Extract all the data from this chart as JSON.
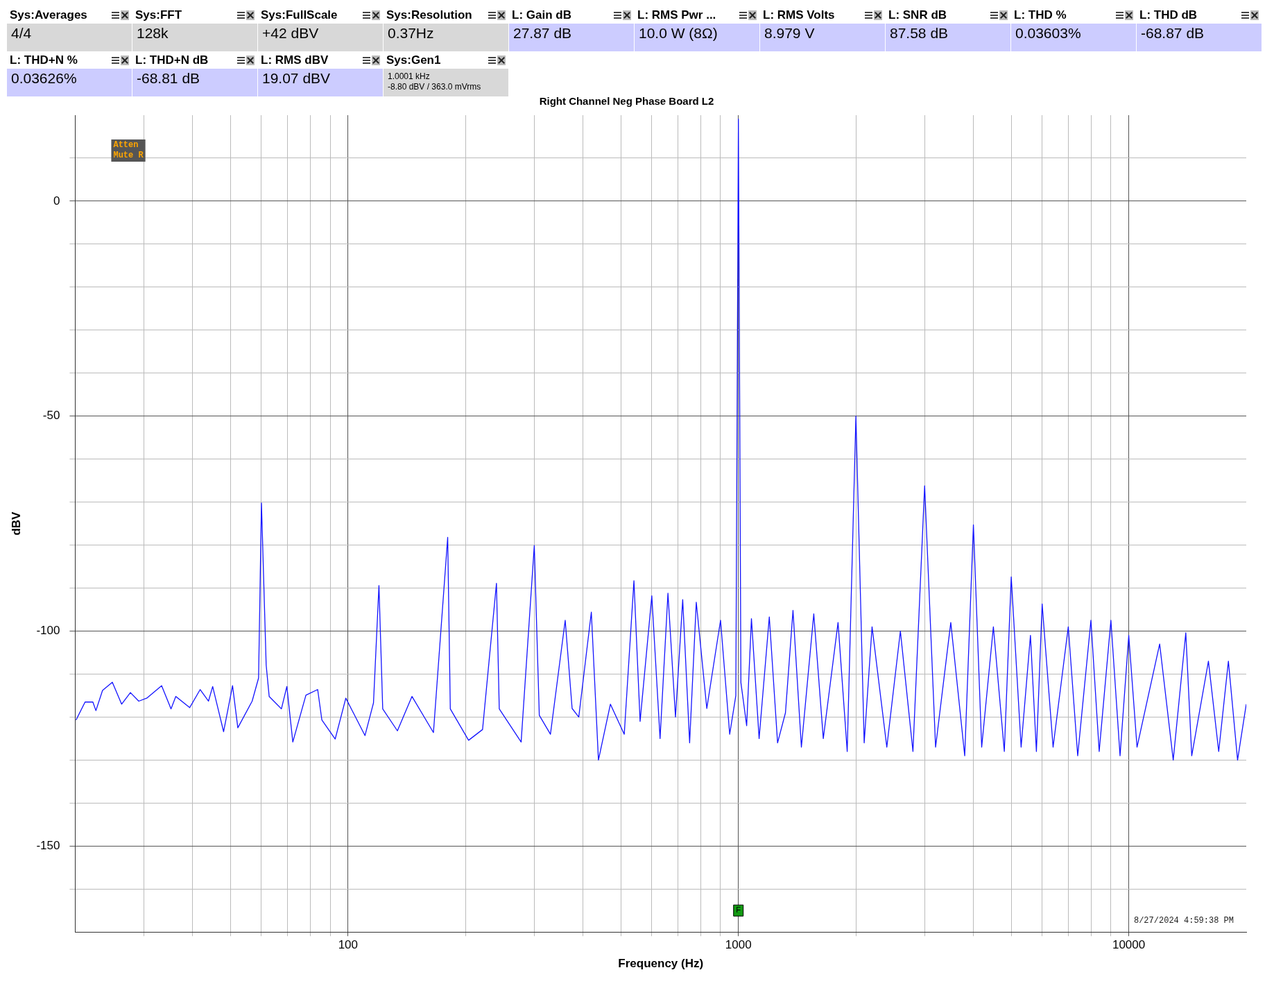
{
  "chart_data": {
    "type": "line",
    "title": "Right Channel Neg Phase Board L2",
    "xlabel": "Frequency (Hz)",
    "ylabel": "dBV",
    "annotations": [
      "Sys:Averages",
      "4/4",
      "Sys:FFT",
      "128k",
      "Sys:FullScale",
      "+42 dBV",
      "Sys:Resolution",
      "0.37Hz",
      "L: Gain dB",
      "27.87 dB",
      "L: RMS Pwr ...",
      "10.0 W (8Ω)",
      "L: RMS Volts",
      "8.979 V",
      "L: SNR dB",
      "87.58 dB",
      "L: THD %",
      "0.03603%",
      "L: THD dB",
      "-68.87 dB",
      "L: THD+N %",
      "0.03626%",
      "L: THD+N dB",
      "-68.81 dB",
      "L: RMS dBV",
      "19.07 dBV",
      "Sys:Gen1",
      "1.0001 kHz\n-8.80 dBV  / 363.0 mVrms",
      "Atten\nMute R",
      "8/27/2024 4:59:38 PM",
      {
        "text": "F",
        "x": 1000,
        "y": -165
      }
    ],
    "x": [
      20.1,
      21.2,
      22.2,
      22.6,
      23.5,
      24.9,
      26.3,
      27.7,
      29.1,
      30.5,
      33.3,
      35.2,
      36.2,
      39.3,
      41.8,
      43.9,
      45,
      48,
      50.6,
      52.2,
      56.8,
      59,
      60,
      61.7,
      62.8,
      67.5,
      69.7,
      72.2,
      78,
      83.6,
      85.7,
      92.7,
      98.7,
      110.5,
      116.2,
      120,
      122.7,
      133.8,
      145.8,
      165.5,
      180,
      182.8,
      203.6,
      221.1,
      240,
      244,
      277.6,
      300,
      309,
      330,
      360,
      375,
      390,
      420,
      438,
      470,
      510,
      540,
      560,
      600,
      630,
      660,
      690,
      720,
      750,
      780,
      830,
      900,
      950,
      985,
      1000,
      1015,
      1050,
      1080,
      1130,
      1200,
      1260,
      1320,
      1380,
      1450,
      1560,
      1650,
      1800,
      1900,
      2000,
      2100,
      2200,
      2400,
      2600,
      2800,
      3000,
      3200,
      3500,
      3800,
      4000,
      4200,
      4500,
      4800,
      5000,
      5300,
      5600,
      5800,
      6000,
      6400,
      7000,
      7400,
      8000,
      8400,
      9000,
      9500,
      10000,
      10500,
      12000,
      13000,
      14000,
      14500,
      16000,
      17000,
      18000,
      19000,
      20000
    ],
    "values": [
      -120.7,
      -116.5,
      -116.5,
      -118.5,
      -113.8,
      -111.9,
      -117,
      -114.3,
      -116.3,
      -115.6,
      -112.7,
      -118.1,
      -115.2,
      -117.8,
      -113.6,
      -116.3,
      -112.9,
      -123.4,
      -112.7,
      -122.5,
      -116.3,
      -110.9,
      -70.2,
      -107.9,
      -115.2,
      -118.1,
      -112.9,
      -125.8,
      -114.9,
      -113.6,
      -120.7,
      -125.1,
      -115.6,
      -124.3,
      -116.7,
      -89.4,
      -118.1,
      -123.2,
      -115.2,
      -123.6,
      -78.2,
      -118.1,
      -125.4,
      -122.9,
      -88.9,
      -118.1,
      -125.8,
      -80.1,
      -119.6,
      -124,
      -97.5,
      -118,
      -120,
      -95.6,
      -130,
      -117,
      -124,
      -88.3,
      -121,
      -91.8,
      -125,
      -91.2,
      -120,
      -92.7,
      -126,
      -93.3,
      -118,
      -97.5,
      -124,
      -115,
      19.07,
      -112,
      -122,
      -97.1,
      -125,
      -96.7,
      -126,
      -119,
      -95.2,
      -127,
      -96,
      -125,
      -98,
      -128,
      -50,
      -126,
      -99,
      -127,
      -100,
      -128,
      -66.2,
      -127,
      -98,
      -129,
      -75.3,
      -127,
      -99,
      -128,
      -87.4,
      -127,
      -101,
      -128,
      -93.7,
      -127,
      -99,
      -129,
      -97.5,
      -128,
      -97.5,
      -129,
      -101,
      -127,
      -103,
      -130,
      -100.4,
      -129,
      -107,
      -128,
      -107,
      -130,
      -117
    ],
    "color": "#1414ff",
    "marker": "none",
    "line_style": "solid",
    "legend": false,
    "grid": true,
    "log": "x",
    "xlim": [
      20,
      20000
    ],
    "ylim": [
      -170,
      20
    ],
    "xticks": [
      {
        "value": 30,
        "label": null
      },
      {
        "value": 40,
        "label": null
      },
      {
        "value": 50,
        "label": null
      },
      {
        "value": 60,
        "label": null
      },
      {
        "value": 70,
        "label": null
      },
      {
        "value": 80,
        "label": null
      },
      {
        "value": 90,
        "label": null
      },
      100,
      {
        "value": 200,
        "label": null
      },
      {
        "value": 300,
        "label": null
      },
      {
        "value": 400,
        "label": null
      },
      {
        "value": 500,
        "label": null
      },
      {
        "value": 600,
        "label": null
      },
      {
        "value": 700,
        "label": null
      },
      {
        "value": 800,
        "label": null
      },
      {
        "value": 900,
        "label": null
      },
      1000,
      {
        "value": 2000,
        "label": null
      },
      {
        "value": 3000,
        "label": null
      },
      {
        "value": 4000,
        "label": null
      },
      {
        "value": 5000,
        "label": null
      },
      {
        "value": 6000,
        "label": null
      },
      {
        "value": 7000,
        "label": null
      },
      {
        "value": 8000,
        "label": null
      },
      {
        "value": 9000,
        "label": null
      },
      10000
    ],
    "yticks": [
      {
        "value": -160,
        "label": null
      },
      -150,
      {
        "value": -140,
        "label": null
      },
      {
        "value": -130,
        "label": null
      },
      {
        "value": -120,
        "label": null
      },
      {
        "value": -110,
        "label": null
      },
      -100,
      {
        "value": -90,
        "label": null
      },
      {
        "value": -80,
        "label": null
      },
      {
        "value": -70,
        "label": null
      },
      {
        "value": -60,
        "label": null
      },
      -50,
      {
        "value": -40,
        "label": null
      },
      {
        "value": -30,
        "label": null
      },
      {
        "value": -20,
        "label": null
      },
      {
        "value": -10,
        "label": null
      },
      0,
      {
        "value": 10,
        "label": null
      }
    ]
  }
}
